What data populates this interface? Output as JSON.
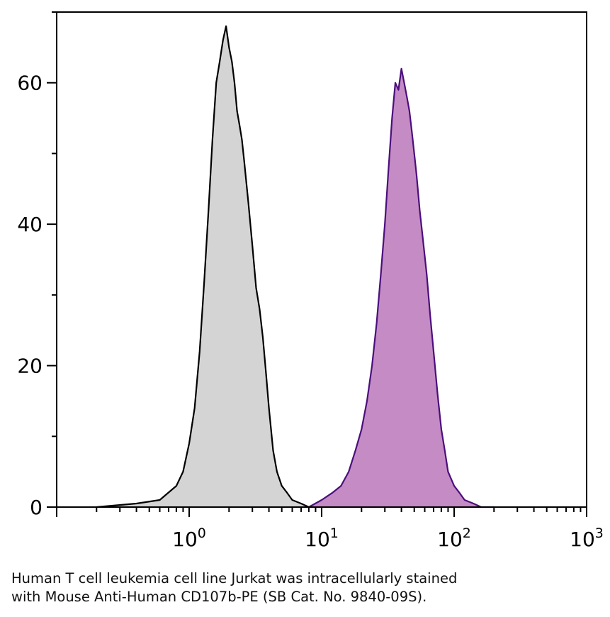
{
  "chart_data": {
    "type": "area",
    "title": "",
    "xlabel": "",
    "ylabel": "",
    "x_scale": "log",
    "xlim": [
      0.1,
      1000
    ],
    "ylim": [
      0,
      70
    ],
    "grid": false,
    "legend": "none",
    "x_ticks": [
      {
        "value": 1,
        "base": "10",
        "exp": "0"
      },
      {
        "value": 10,
        "base": "10",
        "exp": "1"
      },
      {
        "value": 100,
        "base": "10",
        "exp": "2"
      },
      {
        "value": 1000,
        "base": "10",
        "exp": "3"
      }
    ],
    "y_ticks": [
      {
        "value": 0,
        "label": "0"
      },
      {
        "value": 20,
        "label": "20"
      },
      {
        "value": 40,
        "label": "40"
      },
      {
        "value": 60,
        "label": "60"
      }
    ],
    "series": [
      {
        "color": "#000000",
        "fill": "#d4d4d4",
        "x": [
          0.2,
          0.4,
          0.6,
          0.8,
          0.9,
          1.0,
          1.1,
          1.2,
          1.3,
          1.4,
          1.5,
          1.6,
          1.7,
          1.8,
          1.9,
          2.0,
          2.1,
          2.2,
          2.3,
          2.4,
          2.5,
          2.6,
          2.8,
          3.0,
          3.2,
          3.4,
          3.6,
          3.8,
          4.0,
          4.3,
          4.6,
          5.0,
          5.5,
          6.0,
          7.0,
          8.0,
          9.0,
          10
        ],
        "y": [
          0,
          0.5,
          1,
          3,
          5,
          9,
          14,
          22,
          32,
          42,
          52,
          60,
          63,
          66,
          68,
          65,
          63,
          60,
          56,
          54,
          52,
          49,
          43,
          37,
          31,
          28,
          24,
          19,
          14,
          8,
          5,
          3,
          2,
          1,
          0.5,
          0,
          0,
          0
        ]
      },
      {
        "color": "#4b0f7c",
        "fill": "#c48bc5",
        "x": [
          8,
          10,
          12,
          14,
          16,
          18,
          20,
          22,
          24,
          26,
          28,
          30,
          32,
          34,
          36,
          38,
          40,
          42,
          44,
          46,
          48,
          50,
          52,
          55,
          58,
          62,
          66,
          70,
          75,
          80,
          85,
          90,
          100,
          110,
          120,
          140,
          160,
          200
        ],
        "y": [
          0,
          1,
          2,
          3,
          5,
          8,
          11,
          15,
          20,
          26,
          33,
          40,
          48,
          55,
          60,
          59,
          62,
          60,
          58,
          56,
          53,
          50,
          47,
          42,
          38,
          33,
          27,
          22,
          16,
          11,
          8,
          5,
          3,
          2,
          1,
          0.5,
          0,
          0
        ]
      }
    ]
  },
  "caption": {
    "line1": "Human T cell leukemia cell line Jurkat was intracellularly stained",
    "line2": "with Mouse Anti-Human CD107b-PE (SB Cat. No. 9840-09S)."
  }
}
